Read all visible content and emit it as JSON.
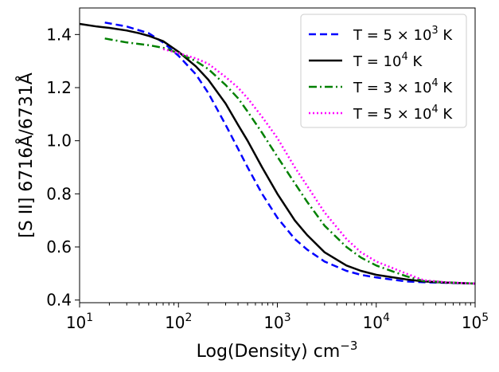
{
  "chart_data": {
    "type": "line",
    "xscale": "log",
    "xlim": [
      10,
      100000
    ],
    "ylim": [
      0.39,
      1.5
    ],
    "xlabel": "Log(Density) cm",
    "xlabel_sup": "−3",
    "ylabel": "[S II] 6716Å/6731Å",
    "x_ticks": [
      {
        "value": 10,
        "base": "10",
        "exp": "1"
      },
      {
        "value": 100,
        "base": "10",
        "exp": "2"
      },
      {
        "value": 1000,
        "base": "10",
        "exp": "3"
      },
      {
        "value": 10000,
        "base": "10",
        "exp": "4"
      },
      {
        "value": 100000,
        "base": "10",
        "exp": "5"
      }
    ],
    "y_ticks": [
      {
        "value": 0.4,
        "label": "0.4"
      },
      {
        "value": 0.6,
        "label": "0.6"
      },
      {
        "value": 0.8,
        "label": "0.8"
      },
      {
        "value": 1.0,
        "label": "1.0"
      },
      {
        "value": 1.2,
        "label": "1.2"
      },
      {
        "value": 1.4,
        "label": "1.4"
      }
    ],
    "legend_position": "top-right",
    "series": [
      {
        "name": "T = 5 × 10³ K",
        "legend": {
          "pre": "T = 5 × 10",
          "sup": "3",
          "post": " K"
        },
        "color": "#0000ff",
        "dash": "9,5",
        "x": [
          18,
          30,
          50,
          70,
          100,
          150,
          200,
          300,
          400,
          500,
          700,
          1000,
          1500,
          2000,
          3000,
          5000,
          7000,
          10000,
          20000,
          30000,
          50000,
          100000
        ],
        "y": [
          1.445,
          1.43,
          1.405,
          1.37,
          1.32,
          1.25,
          1.18,
          1.06,
          0.97,
          0.9,
          0.8,
          0.71,
          0.63,
          0.59,
          0.545,
          0.51,
          0.495,
          0.485,
          0.47,
          0.467,
          0.465,
          0.462
        ]
      },
      {
        "name": "T = 10⁴ K",
        "legend": {
          "pre": "T = 10",
          "sup": "4",
          "post": " K"
        },
        "color": "#000000",
        "dash": "",
        "x": [
          10,
          15,
          20,
          30,
          40,
          50,
          70,
          100,
          150,
          200,
          300,
          400,
          500,
          700,
          1000,
          1500,
          2000,
          3000,
          5000,
          7000,
          10000,
          20000,
          30000,
          50000,
          100000
        ],
        "y": [
          1.44,
          1.43,
          1.425,
          1.415,
          1.405,
          1.395,
          1.375,
          1.335,
          1.28,
          1.23,
          1.14,
          1.06,
          1.0,
          0.9,
          0.8,
          0.7,
          0.645,
          0.58,
          0.53,
          0.51,
          0.495,
          0.478,
          0.47,
          0.466,
          0.462
        ]
      },
      {
        "name": "T = 3 × 10⁴ K",
        "legend": {
          "pre": "T = 3 × 10",
          "sup": "4",
          "post": " K"
        },
        "color": "#008000",
        "dash": "10,4,2,4",
        "x": [
          18,
          30,
          50,
          70,
          100,
          150,
          200,
          300,
          400,
          500,
          700,
          1000,
          1500,
          2000,
          3000,
          5000,
          7000,
          10000,
          20000,
          30000,
          50000,
          100000
        ],
        "y": [
          1.385,
          1.37,
          1.36,
          1.35,
          1.33,
          1.3,
          1.27,
          1.21,
          1.16,
          1.11,
          1.03,
          0.94,
          0.84,
          0.77,
          0.68,
          0.6,
          0.56,
          0.53,
          0.49,
          0.472,
          0.467,
          0.462
        ]
      },
      {
        "name": "T = 5 × 10⁴ K",
        "legend": {
          "pre": "T = 5 × 10",
          "sup": "4",
          "post": " K"
        },
        "color": "#ff00ff",
        "dash": "2,3",
        "x": [
          70,
          100,
          150,
          200,
          300,
          400,
          500,
          700,
          1000,
          1500,
          2000,
          3000,
          5000,
          7000,
          10000,
          20000,
          30000,
          50000,
          100000
        ],
        "y": [
          1.345,
          1.33,
          1.31,
          1.29,
          1.24,
          1.2,
          1.16,
          1.09,
          1.01,
          0.9,
          0.83,
          0.73,
          0.63,
          0.58,
          0.545,
          0.5,
          0.475,
          0.467,
          0.462
        ]
      }
    ]
  }
}
